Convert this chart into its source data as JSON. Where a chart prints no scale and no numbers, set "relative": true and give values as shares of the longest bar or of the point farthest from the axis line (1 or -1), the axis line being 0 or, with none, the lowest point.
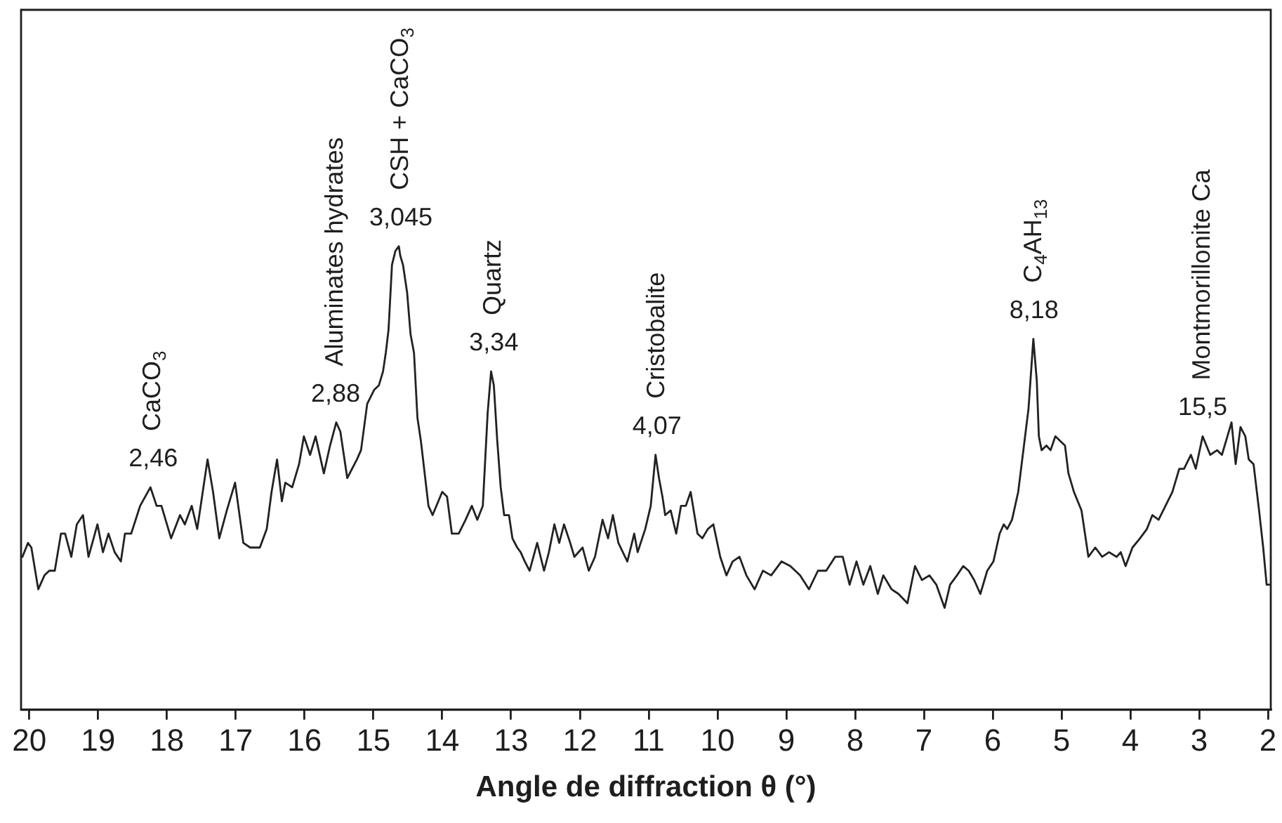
{
  "chart_data": {
    "type": "line",
    "relative": true,
    "xlabel": "Angle de diffraction θ (°)",
    "xlim": [
      20.12,
      1.96
    ],
    "xticks": [
      20,
      19,
      18,
      17,
      16,
      15,
      14,
      13,
      12,
      11,
      10,
      9,
      8,
      7,
      6,
      5,
      4,
      3,
      2
    ],
    "series": [
      {
        "color": "#222222",
        "x": [
          20.1,
          20.02,
          19.97,
          19.87,
          19.78,
          19.71,
          19.63,
          19.54,
          19.48,
          19.39,
          19.31,
          19.22,
          19.14,
          19.01,
          18.93,
          18.85,
          18.76,
          18.67,
          18.61,
          18.52,
          18.39,
          18.24,
          18.15,
          18.08,
          17.94,
          17.81,
          17.74,
          17.64,
          17.56,
          17.41,
          17.33,
          17.24,
          17.13,
          17.01,
          16.89,
          16.79,
          16.65,
          16.55,
          16.48,
          16.4,
          16.33,
          16.28,
          16.18,
          16.08,
          16.01,
          15.92,
          15.84,
          15.72,
          15.63,
          15.54,
          15.48,
          15.38,
          15.24,
          15.18,
          15.09,
          14.99,
          14.92,
          14.86,
          14.82,
          14.78,
          14.73,
          14.68,
          14.63,
          14.61,
          14.57,
          14.51,
          14.46,
          14.41,
          14.36,
          14.31,
          14.2,
          14.14,
          14.0,
          13.93,
          13.86,
          13.76,
          13.66,
          13.57,
          13.49,
          13.41,
          13.34,
          13.29,
          13.25,
          13.2,
          13.15,
          13.1,
          13.03,
          12.98,
          12.91,
          12.86,
          12.8,
          12.73,
          12.62,
          12.52,
          12.45,
          12.37,
          12.3,
          12.23,
          12.14,
          12.08,
          11.96,
          11.87,
          11.78,
          11.67,
          11.59,
          11.52,
          11.44,
          11.31,
          11.21,
          11.16,
          11.05,
          10.97,
          10.9,
          10.85,
          10.8,
          10.76,
          10.68,
          10.6,
          10.53,
          10.46,
          10.39,
          10.29,
          10.22,
          10.14,
          10.06,
          9.96,
          9.87,
          9.78,
          9.68,
          9.58,
          9.46,
          9.34,
          9.22,
          9.07,
          8.94,
          8.8,
          8.67,
          8.54,
          8.42,
          8.29,
          8.18,
          8.08,
          7.98,
          7.88,
          7.78,
          7.67,
          7.59,
          7.47,
          7.37,
          7.24,
          7.13,
          7.03,
          6.92,
          6.82,
          6.7,
          6.62,
          6.52,
          6.43,
          6.35,
          6.27,
          6.18,
          6.08,
          5.99,
          5.9,
          5.84,
          5.79,
          5.72,
          5.63,
          5.53,
          5.48,
          5.41,
          5.36,
          5.33,
          5.29,
          5.22,
          5.16,
          5.09,
          5.02,
          4.95,
          4.9,
          4.82,
          4.71,
          4.65,
          4.61,
          4.51,
          4.41,
          4.31,
          4.2,
          4.14,
          4.07,
          3.97,
          3.86,
          3.76,
          3.68,
          3.59,
          3.49,
          3.39,
          3.29,
          3.22,
          3.12,
          3.05,
          2.95,
          2.84,
          2.74,
          2.67,
          2.59,
          2.53,
          2.47,
          2.4,
          2.33,
          2.28,
          2.21,
          2.13,
          2.07,
          2.02,
          1.98
        ],
        "values": [
          0.33,
          0.36,
          0.35,
          0.26,
          0.29,
          0.3,
          0.3,
          0.38,
          0.38,
          0.33,
          0.4,
          0.42,
          0.33,
          0.4,
          0.34,
          0.38,
          0.34,
          0.32,
          0.38,
          0.38,
          0.44,
          0.48,
          0.44,
          0.44,
          0.37,
          0.42,
          0.4,
          0.44,
          0.39,
          0.54,
          0.47,
          0.37,
          0.43,
          0.49,
          0.36,
          0.35,
          0.35,
          0.39,
          0.47,
          0.54,
          0.45,
          0.49,
          0.48,
          0.53,
          0.59,
          0.55,
          0.59,
          0.51,
          0.57,
          0.62,
          0.6,
          0.5,
          0.54,
          0.56,
          0.66,
          0.69,
          0.7,
          0.73,
          0.77,
          0.82,
          0.96,
          0.99,
          1.0,
          0.98,
          0.96,
          0.9,
          0.81,
          0.77,
          0.63,
          0.58,
          0.44,
          0.42,
          0.47,
          0.46,
          0.38,
          0.38,
          0.41,
          0.44,
          0.41,
          0.44,
          0.64,
          0.73,
          0.7,
          0.58,
          0.48,
          0.42,
          0.42,
          0.37,
          0.35,
          0.34,
          0.32,
          0.3,
          0.36,
          0.3,
          0.34,
          0.4,
          0.36,
          0.4,
          0.36,
          0.33,
          0.35,
          0.3,
          0.33,
          0.41,
          0.37,
          0.42,
          0.36,
          0.32,
          0.38,
          0.34,
          0.39,
          0.44,
          0.55,
          0.5,
          0.46,
          0.42,
          0.43,
          0.38,
          0.44,
          0.44,
          0.47,
          0.38,
          0.37,
          0.39,
          0.4,
          0.33,
          0.29,
          0.32,
          0.33,
          0.29,
          0.26,
          0.3,
          0.29,
          0.32,
          0.31,
          0.29,
          0.26,
          0.3,
          0.3,
          0.33,
          0.33,
          0.27,
          0.32,
          0.27,
          0.31,
          0.25,
          0.29,
          0.26,
          0.25,
          0.23,
          0.31,
          0.28,
          0.29,
          0.27,
          0.22,
          0.27,
          0.29,
          0.31,
          0.3,
          0.28,
          0.25,
          0.3,
          0.32,
          0.38,
          0.4,
          0.39,
          0.41,
          0.47,
          0.59,
          0.65,
          0.8,
          0.71,
          0.59,
          0.56,
          0.57,
          0.56,
          0.59,
          0.58,
          0.57,
          0.51,
          0.47,
          0.43,
          0.37,
          0.33,
          0.35,
          0.33,
          0.34,
          0.33,
          0.34,
          0.31,
          0.35,
          0.37,
          0.39,
          0.42,
          0.41,
          0.44,
          0.47,
          0.52,
          0.52,
          0.55,
          0.52,
          0.59,
          0.55,
          0.56,
          0.55,
          0.59,
          0.62,
          0.53,
          0.61,
          0.59,
          0.54,
          0.53,
          0.43,
          0.35,
          0.27,
          0.27
        ]
      }
    ],
    "annotations": [
      {
        "text": "CaCO$_{3}$",
        "x": 18.2,
        "y": 0.48
      },
      {
        "text": "2,46",
        "x": 18.2,
        "y": 0.48
      },
      {
        "text": "Aluminates hydrates",
        "x": 15.55,
        "y": 0.62
      },
      {
        "text": "2,88",
        "x": 15.55,
        "y": 0.62
      },
      {
        "text": "CSH + CaCO$_{3}$",
        "x": 14.6,
        "y": 1.0
      },
      {
        "text": "3,045",
        "x": 14.6,
        "y": 1.0
      },
      {
        "text": "Quartz",
        "x": 13.25,
        "y": 0.73
      },
      {
        "text": "3,34",
        "x": 13.25,
        "y": 0.73
      },
      {
        "text": "Cristobalite",
        "x": 10.88,
        "y": 0.55
      },
      {
        "text": "4,07",
        "x": 10.88,
        "y": 0.55
      },
      {
        "text": "C$_{4}$AH$_{13}$",
        "x": 5.4,
        "y": 0.8
      },
      {
        "text": "8,18",
        "x": 5.4,
        "y": 0.8
      },
      {
        "text": "Montmorillonite Ca",
        "x": 2.95,
        "y": 0.59
      },
      {
        "text": "15,5",
        "x": 2.95,
        "y": 0.59
      }
    ]
  }
}
